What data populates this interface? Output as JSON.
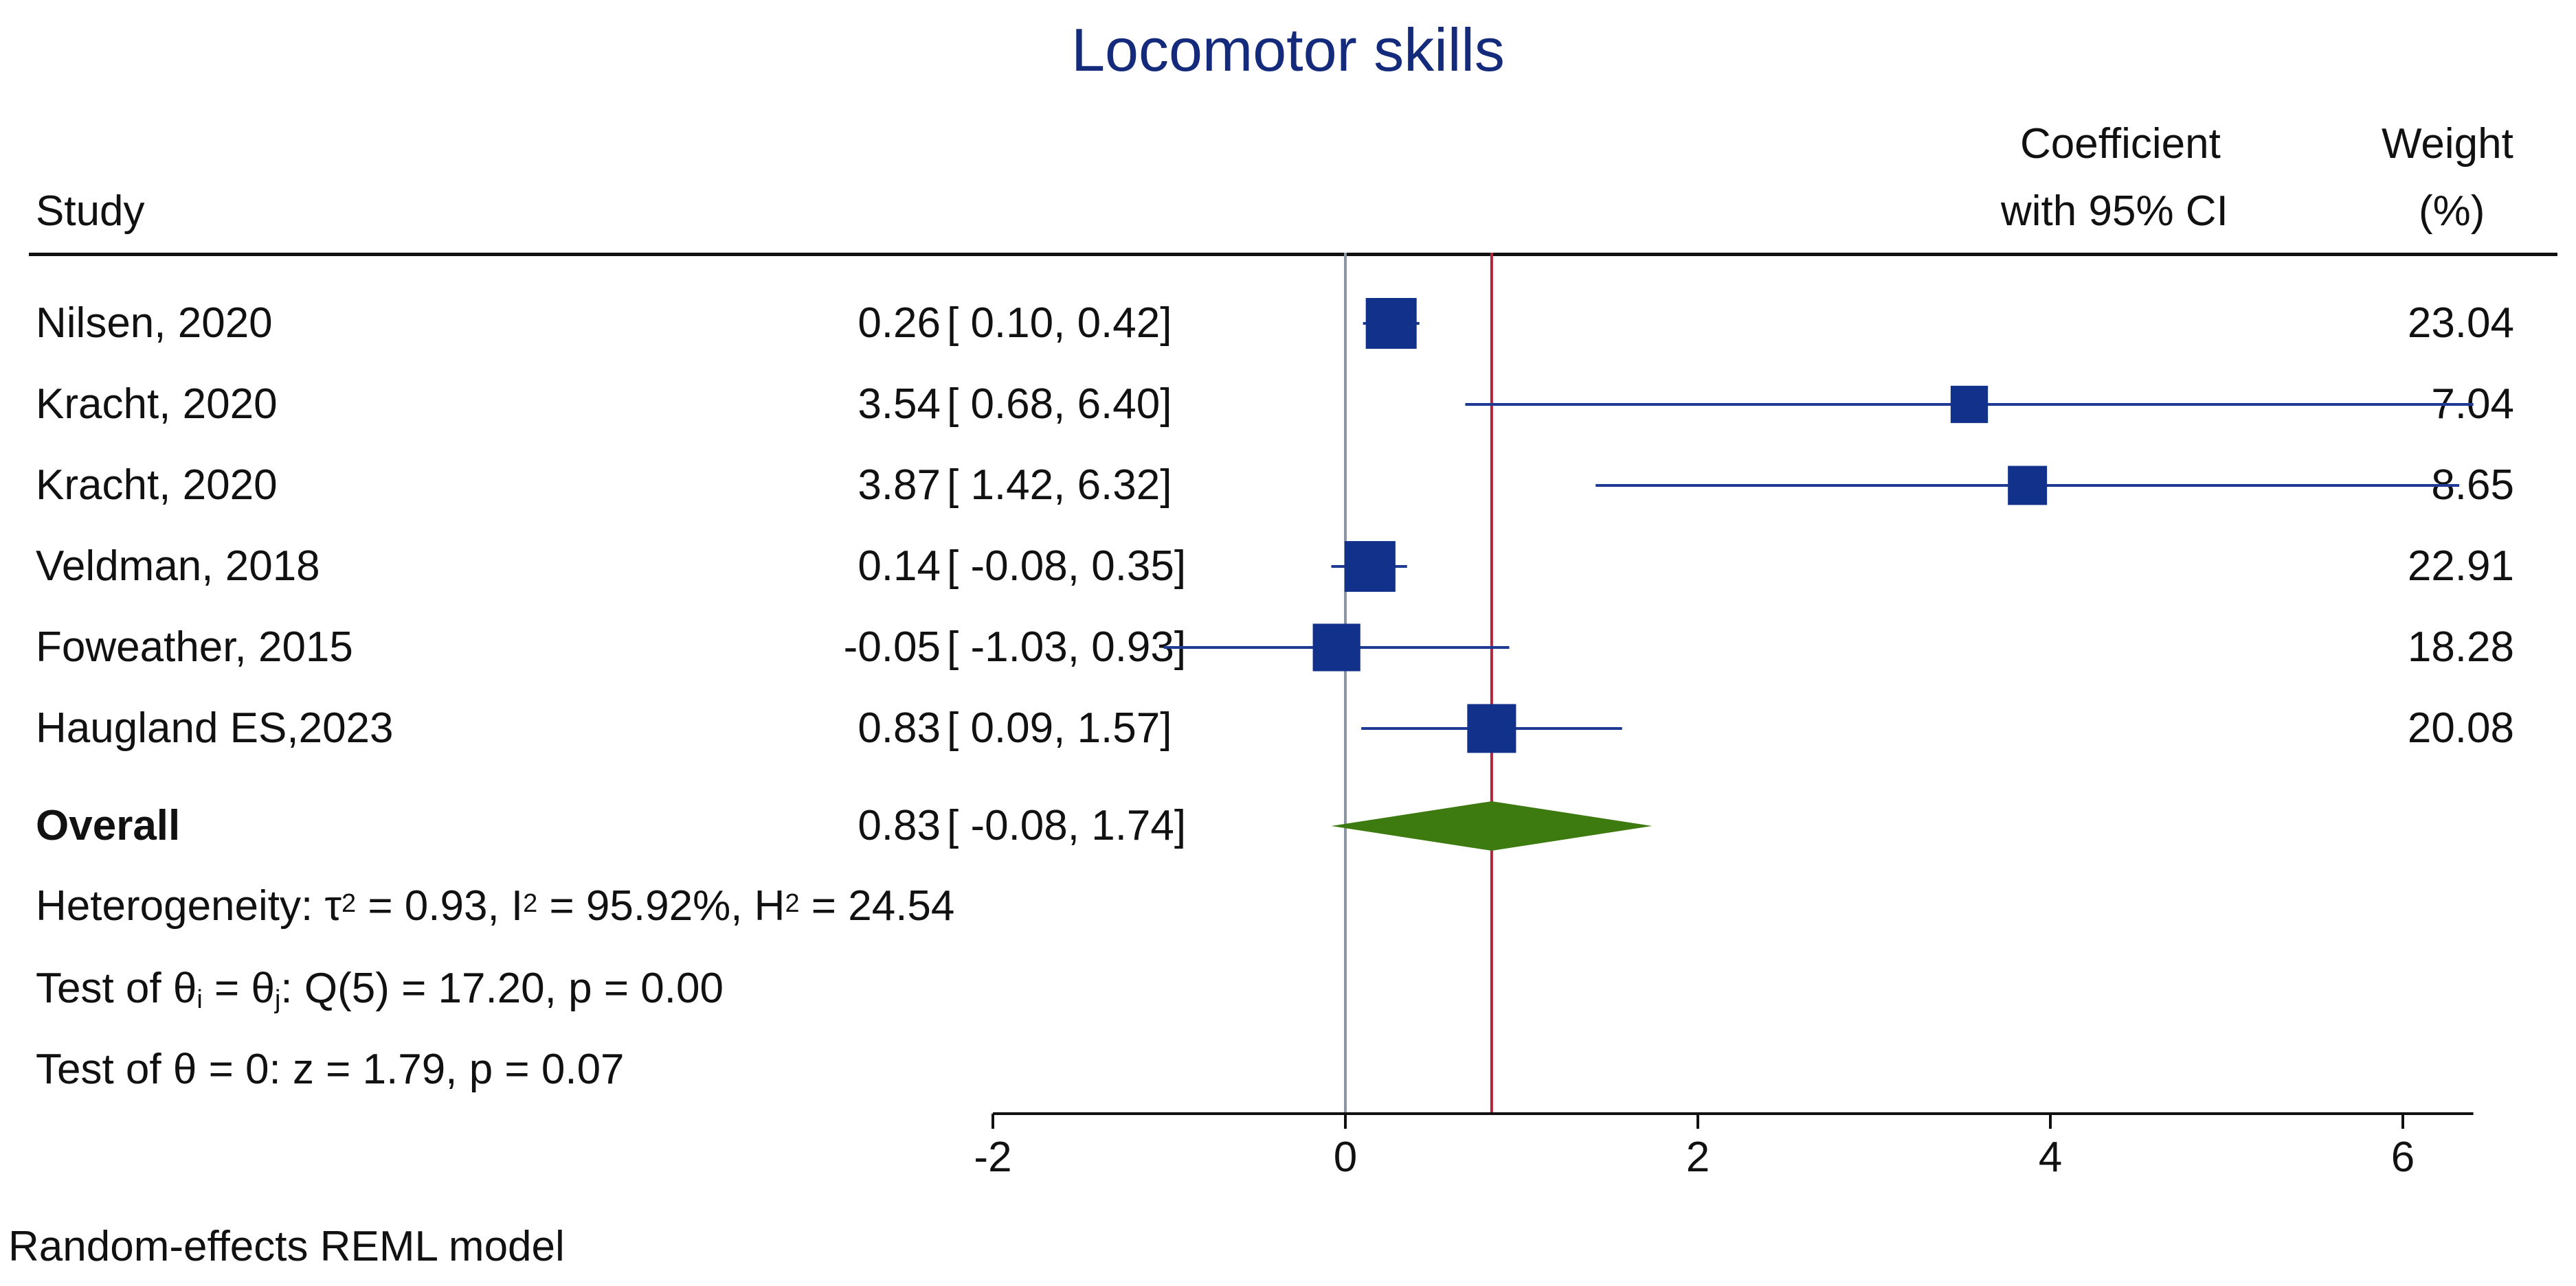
{
  "chart_data": {
    "type": "forest",
    "title": "Locomotor skills",
    "headers": {
      "study": "Study",
      "coef_line1": "Coefficient",
      "coef_line2": "with 95% CI",
      "weight_line1": "Weight",
      "weight_line2": "(%)"
    },
    "studies": [
      {
        "label": "Nilsen, 2020",
        "estimate": 0.26,
        "lower": 0.1,
        "upper": 0.42,
        "weight": 23.04,
        "coef": "0.26",
        "ci": "[  0.10,  0.42]",
        "weight_text": "23.04"
      },
      {
        "label": "Kracht, 2020",
        "estimate": 3.54,
        "lower": 0.68,
        "upper": 6.4,
        "weight": 7.04,
        "coef": "3.54",
        "ci": "[  0.68,  6.40]",
        "weight_text": "7.04"
      },
      {
        "label": "Kracht, 2020",
        "estimate": 3.87,
        "lower": 1.42,
        "upper": 6.32,
        "weight": 8.65,
        "coef": "3.87",
        "ci": "[  1.42,  6.32]",
        "weight_text": "8.65"
      },
      {
        "label": "Veldman, 2018",
        "estimate": 0.14,
        "lower": -0.08,
        "upper": 0.35,
        "weight": 22.91,
        "coef": "0.14",
        "ci": "[ -0.08,  0.35]",
        "weight_text": "22.91"
      },
      {
        "label": "Foweather, 2015",
        "estimate": -0.05,
        "lower": -1.03,
        "upper": 0.93,
        "weight": 18.28,
        "coef": "-0.05",
        "ci": "[ -1.03,  0.93]",
        "weight_text": "18.28"
      },
      {
        "label": "Haugland ES,2023",
        "estimate": 0.83,
        "lower": 0.09,
        "upper": 1.57,
        "weight": 20.08,
        "coef": "0.83",
        "ci": "[  0.09,  1.57]",
        "weight_text": "20.08"
      }
    ],
    "overall": {
      "label": "Overall",
      "estimate": 0.83,
      "lower": -0.08,
      "upper": 1.74,
      "coef": "0.83",
      "ci": "[ -0.08,  1.74]"
    },
    "heterogeneity": {
      "prefix": "Heterogeneity: τ",
      "tau_sup": "2",
      "i_text": " = 0.93, I",
      "i_sup": "2",
      "h_text": " = 95.92%, H",
      "h_sup": "2",
      "end": " = 24.54"
    },
    "test_homogeneity": {
      "prefix": "Test of θ",
      "sub_i": "i",
      "mid": " = θ",
      "sub_j": "j",
      "end": ": Q(5) = 17.20, p = 0.00"
    },
    "test_overall": "Test of θ = 0: z = 1.79, p = 0.07",
    "xaxis": {
      "ticks": [
        -2,
        0,
        2,
        4,
        6
      ],
      "tick_labels": [
        "-2",
        "0",
        "2",
        "4",
        "6"
      ],
      "range": [
        -2,
        6.4
      ]
    },
    "null_line": 0,
    "footer": "Random-effects REML model",
    "colors": {
      "marker": "#11318a",
      "ci_line": "#1f3a94",
      "diamond": "#3d7a0f",
      "overall_line": "#b3243f",
      "null_line": "#8a96a8",
      "title": "#142a7a"
    }
  }
}
